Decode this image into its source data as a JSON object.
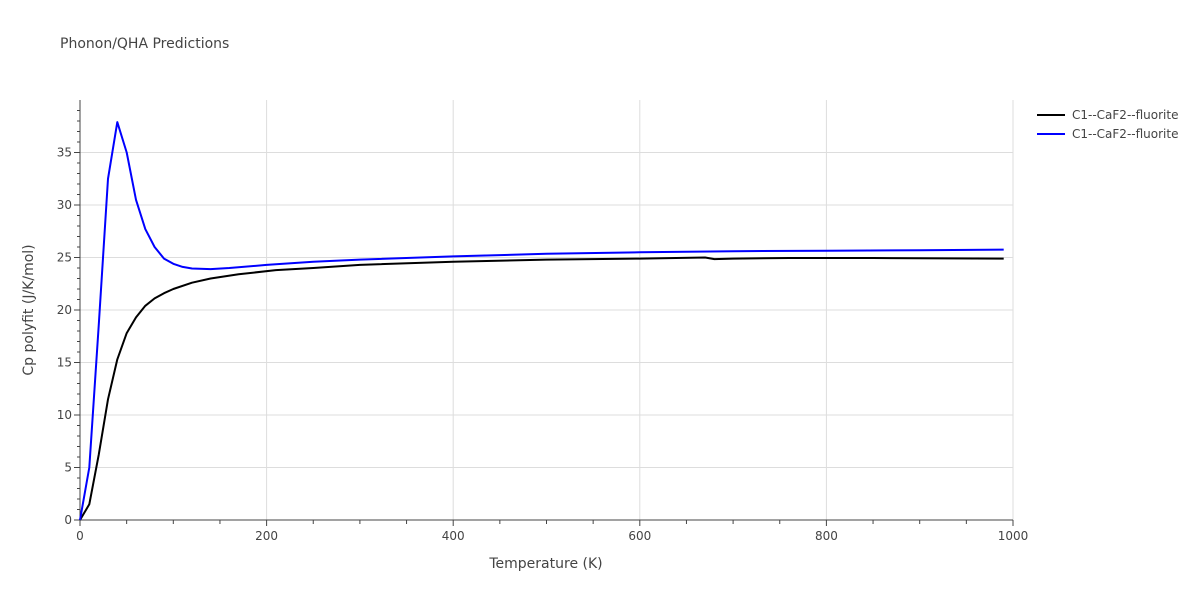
{
  "chart_data": {
    "type": "line",
    "title": "Phonon/QHA Predictions",
    "xlabel": "Temperature (K)",
    "ylabel": "Cp polyfit (J/K/mol)",
    "xlim": [
      0,
      1000
    ],
    "ylim": [
      0,
      40
    ],
    "x_ticks": [
      0,
      200,
      400,
      600,
      800,
      1000
    ],
    "y_ticks": [
      0,
      5,
      10,
      15,
      20,
      25,
      30,
      35
    ],
    "grid": true,
    "legend_position": "top-right",
    "series": [
      {
        "name": "C1--CaF2--fluorite",
        "color": "#000000",
        "x": [
          0,
          10,
          20,
          30,
          40,
          50,
          60,
          70,
          80,
          90,
          100,
          120,
          140,
          170,
          210,
          250,
          300,
          400,
          500,
          600,
          670,
          680,
          700,
          760,
          850,
          990
        ],
        "y": [
          0,
          1.5,
          6.2,
          11.5,
          15.3,
          17.8,
          19.3,
          20.4,
          21.1,
          21.6,
          22.0,
          22.6,
          23.0,
          23.4,
          23.8,
          24.0,
          24.3,
          24.6,
          24.8,
          24.9,
          25.0,
          24.85,
          24.9,
          24.95,
          24.95,
          24.9
        ]
      },
      {
        "name": "C1--CaF2--fluorite",
        "color": "#0000ff",
        "x": [
          0,
          10,
          20,
          30,
          40,
          50,
          60,
          70,
          80,
          90,
          100,
          110,
          120,
          140,
          160,
          200,
          250,
          300,
          400,
          500,
          600,
          700,
          800,
          900,
          990
        ],
        "y": [
          0,
          5.0,
          18.5,
          32.5,
          37.9,
          35.0,
          30.5,
          27.7,
          26.0,
          24.9,
          24.4,
          24.1,
          23.95,
          23.9,
          24.0,
          24.3,
          24.6,
          24.8,
          25.1,
          25.35,
          25.5,
          25.6,
          25.65,
          25.7,
          25.75
        ]
      }
    ]
  }
}
